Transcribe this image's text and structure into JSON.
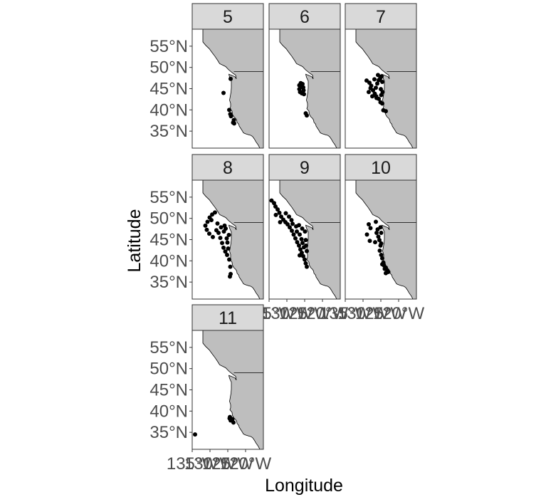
{
  "chart_data": {
    "type": "scatter",
    "facet_variable_values": [
      "5",
      "6",
      "7",
      "8",
      "9",
      "10",
      "11"
    ],
    "xlabel": "Longitude",
    "ylabel": "Latitude",
    "ylim": [
      31,
      59
    ],
    "xlim": [
      -135,
      -115
    ],
    "y_ticks": [
      {
        "value": 35,
        "label": "35°N"
      },
      {
        "value": 40,
        "label": "40°N"
      },
      {
        "value": 45,
        "label": "45°N"
      },
      {
        "value": 50,
        "label": "50°N"
      },
      {
        "value": 55,
        "label": "55°N"
      }
    ],
    "x_ticks": [
      {
        "value": -135,
        "label": "135°W"
      },
      {
        "value": -130,
        "label": "130°W"
      },
      {
        "value": -125,
        "label": "125°W"
      },
      {
        "value": -120,
        "label": "120°W"
      }
    ],
    "grid": false,
    "colors": {
      "land": "#bebebe",
      "ocean": "#ffffff",
      "points": "#000000",
      "strip": "#d9d9d9",
      "text": "#4d4d4d"
    },
    "facets": [
      {
        "label": "5",
        "points": [
          [
            -124.2,
            47.3
          ],
          [
            -126.2,
            44
          ],
          [
            -124.6,
            40
          ],
          [
            -124.3,
            39
          ],
          [
            -124.1,
            38.5
          ],
          [
            -123.3,
            37.6
          ],
          [
            -123.5,
            37
          ],
          [
            -123.2,
            36.8
          ]
        ]
      },
      {
        "label": "6",
        "points": [
          [
            -126.5,
            45.8
          ],
          [
            -126.5,
            44.9
          ],
          [
            -126.3,
            44.2
          ],
          [
            -125.8,
            45.4
          ],
          [
            -125.6,
            46.1
          ],
          [
            -125.4,
            45.3
          ],
          [
            -125.3,
            44.6
          ],
          [
            -125.8,
            43.9
          ],
          [
            -126.1,
            46.3
          ],
          [
            -125.2,
            43.7
          ],
          [
            -124.7,
            39.2
          ],
          [
            -124.4,
            38.7
          ]
        ]
      },
      {
        "label": "7",
        "points": [
          [
            -129,
            46.9
          ],
          [
            -128.2,
            46.4
          ],
          [
            -127.7,
            45.7
          ],
          [
            -127.2,
            44.6
          ],
          [
            -126.7,
            43.8
          ],
          [
            -126.4,
            45.2
          ],
          [
            -126,
            46.2
          ],
          [
            -125.6,
            47
          ],
          [
            -125.2,
            47.4
          ],
          [
            -125,
            44.9
          ],
          [
            -124.9,
            43.5
          ],
          [
            -126.2,
            42.8
          ],
          [
            -127.4,
            43.2
          ],
          [
            -125.6,
            42.6
          ],
          [
            -124.6,
            46.6
          ],
          [
            -124.5,
            44.2
          ],
          [
            -125.1,
            41.8
          ],
          [
            -124.6,
            41.5
          ],
          [
            -124.3,
            39.9
          ],
          [
            -123.6,
            39.7
          ],
          [
            -128.4,
            44.2
          ],
          [
            -126.8,
            47.2
          ],
          [
            -125.8,
            48.2
          ],
          [
            -124.8,
            47.9
          ],
          [
            -127.9,
            45.1
          ],
          [
            -126.3,
            43.2
          ]
        ]
      },
      {
        "label": "8",
        "points": [
          [
            -131.3,
            48.3
          ],
          [
            -130.7,
            49.2
          ],
          [
            -130.1,
            50.2
          ],
          [
            -129.4,
            50.9
          ],
          [
            -128.6,
            51.4
          ],
          [
            -130.9,
            47.3
          ],
          [
            -130.2,
            46.4
          ],
          [
            -129.2,
            45.6
          ],
          [
            -128.2,
            47.2
          ],
          [
            -127.6,
            46.6
          ],
          [
            -127.1,
            45.4
          ],
          [
            -126.6,
            44.2
          ],
          [
            -126.2,
            43.1
          ],
          [
            -125.7,
            42.2
          ],
          [
            -126.1,
            46.9
          ],
          [
            -125.6,
            47.6
          ],
          [
            -125.3,
            45.3
          ],
          [
            -125.1,
            44.3
          ],
          [
            -124.9,
            42.9
          ],
          [
            -125.9,
            48.3
          ],
          [
            -124.7,
            46.1
          ],
          [
            -125.2,
            41.4
          ],
          [
            -124.6,
            40.3
          ],
          [
            -124.3,
            38.6
          ],
          [
            -124.2,
            36.9
          ],
          [
            -124.4,
            36.3
          ],
          [
            -127.9,
            48.8
          ],
          [
            -129.6,
            49.6
          ],
          [
            -126.9,
            47.9
          ]
        ]
      },
      {
        "label": "9",
        "points": [
          [
            -134.3,
            54.2
          ],
          [
            -133.6,
            53.6
          ],
          [
            -133.2,
            52.8
          ],
          [
            -132.6,
            52.1
          ],
          [
            -132.1,
            51.3
          ],
          [
            -131.6,
            50.4
          ],
          [
            -131,
            49.7
          ],
          [
            -130.4,
            49.1
          ],
          [
            -129.8,
            48.6
          ],
          [
            -131.9,
            49.1
          ],
          [
            -133.1,
            50.8
          ],
          [
            -129.2,
            47.9
          ],
          [
            -128.6,
            47.1
          ],
          [
            -128.1,
            46.2
          ],
          [
            -127.6,
            45.3
          ],
          [
            -127.1,
            44.4
          ],
          [
            -126.6,
            43.6
          ],
          [
            -126.2,
            42.7
          ],
          [
            -125.8,
            41.9
          ],
          [
            -125.4,
            41.1
          ],
          [
            -125,
            40.3
          ],
          [
            -124.7,
            39.4
          ],
          [
            -124.4,
            38.6
          ],
          [
            -127.2,
            46.9
          ],
          [
            -126.4,
            46.2
          ],
          [
            -125.9,
            45.1
          ],
          [
            -125.6,
            44.2
          ],
          [
            -125.2,
            43.2
          ],
          [
            -128.4,
            48.7
          ],
          [
            -127.4,
            48.1
          ],
          [
            -126.6,
            48.4
          ],
          [
            -125.7,
            47.6
          ],
          [
            -124.9,
            46.9
          ],
          [
            -124.7,
            44.9
          ],
          [
            -124.6,
            43.6
          ],
          [
            -124.4,
            42.3
          ],
          [
            -130.3,
            51.2
          ],
          [
            -129.4,
            50.4
          ],
          [
            -128.7,
            49.6
          ],
          [
            -126.4,
            41.3
          ]
        ]
      },
      {
        "label": "10",
        "points": [
          [
            -126.4,
            49.2
          ],
          [
            -128.4,
            48.6
          ],
          [
            -127.9,
            47.7
          ],
          [
            -128.9,
            46.2
          ],
          [
            -128.1,
            44.7
          ],
          [
            -126.6,
            44.4
          ],
          [
            -126.2,
            46.6
          ],
          [
            -125.9,
            47.4
          ],
          [
            -125.7,
            45.7
          ],
          [
            -125.4,
            44.9
          ],
          [
            -125.1,
            43.6
          ],
          [
            -125.3,
            42.4
          ],
          [
            -124.9,
            41.4
          ],
          [
            -124.6,
            40.6
          ],
          [
            -124.3,
            39.6
          ],
          [
            -124.1,
            38.9
          ],
          [
            -123.6,
            38.4
          ],
          [
            -123.2,
            37.8
          ],
          [
            -122.9,
            37.4
          ],
          [
            -123.6,
            37.1
          ],
          [
            -124.9,
            46.6
          ],
          [
            -125.1,
            47.9
          ],
          [
            -124.9,
            44.1
          ],
          [
            -124.6,
            39.2
          ],
          [
            -123.9,
            38.1
          ]
        ]
      },
      {
        "label": "11",
        "points": [
          [
            -134.2,
            34.5
          ],
          [
            -124.4,
            38.6
          ],
          [
            -124.2,
            37.8
          ],
          [
            -123.7,
            38.1
          ],
          [
            -123.4,
            37.3
          ],
          [
            -124.5,
            38.3
          ]
        ]
      }
    ]
  }
}
